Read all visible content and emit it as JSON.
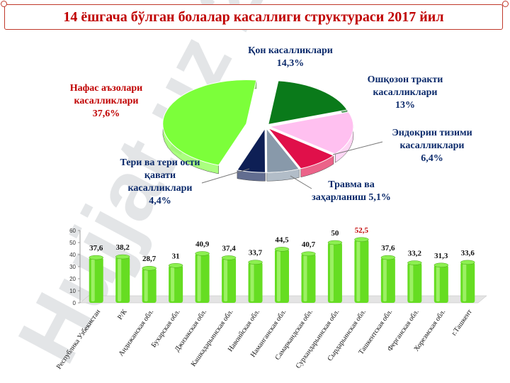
{
  "slide": {
    "title": "14 ёшгача бўлган болалар касаллиги структураси 2017 йил",
    "watermark": "Hujjat.uz 24"
  },
  "colors": {
    "title": "#c00000",
    "bar": "#66dd22",
    "bar_highlight_label": "#c00000",
    "pie_resp": "#7cff3a",
    "pie_blood": "#0a7a1a",
    "pie_digest": "#ffc0f0",
    "pie_endo": "#e0104a",
    "pie_trauma": "#8899aa",
    "pie_skin": "#0e1f55",
    "pie_label": "#0b2a6b",
    "pie_label_resp": "#c00000",
    "watermark": "#9aa0aa"
  },
  "chart_data": [
    {
      "type": "pie",
      "series": [
        {
          "label": "Нафас аъзолари касалликлари",
          "pct": "37,6%",
          "value": 37.6
        },
        {
          "label": "Қон касалликлари",
          "pct": "14,3%",
          "value": 14.3
        },
        {
          "label": "Ошқозон тракти касалликлари",
          "pct": "13%",
          "value": 13.0
        },
        {
          "label": "Эндокрин тизими касалликлари",
          "pct": "6,4%",
          "value": 6.4
        },
        {
          "label": "Травма ва заҳарланиш",
          "pct": "5,1%",
          "value": 5.1
        },
        {
          "label": "Тери ва тери ости қавати касалликлари",
          "pct": "4,4%",
          "value": 4.4
        }
      ]
    },
    {
      "type": "bar",
      "categories": [
        "Республика Узбекистан",
        "Р/К",
        "Андижанская обл.",
        "Бухарская обл.",
        "Джизакская обл.",
        "Кашкадарьинская обл.",
        "Навоийская обл.",
        "Наманганская обл.",
        "Самаркандская обл.",
        "Сурхандарьинская обл.",
        "Сырдарьинская обл.",
        "Ташкентская обл.",
        "Ферганская обл.",
        "Хорезмская обл.",
        "г.Ташкент"
      ],
      "values": [
        37.6,
        38.2,
        28.7,
        31,
        40.9,
        37.4,
        33.7,
        44.5,
        40.7,
        50,
        52.5,
        37.6,
        33.2,
        31.3,
        33.6
      ],
      "value_labels": [
        "37,6",
        "38,2",
        "28,7",
        "31",
        "40,9",
        "37,4",
        "33,7",
        "44,5",
        "40,7",
        "50",
        "52,5",
        "37,6",
        "33,2",
        "31,3",
        "33,6"
      ],
      "highlight_index": 10,
      "ylim": [
        0,
        60
      ],
      "yticks": [
        "0",
        "10",
        "20",
        "30",
        "40",
        "50",
        "60"
      ],
      "grid": false
    }
  ]
}
